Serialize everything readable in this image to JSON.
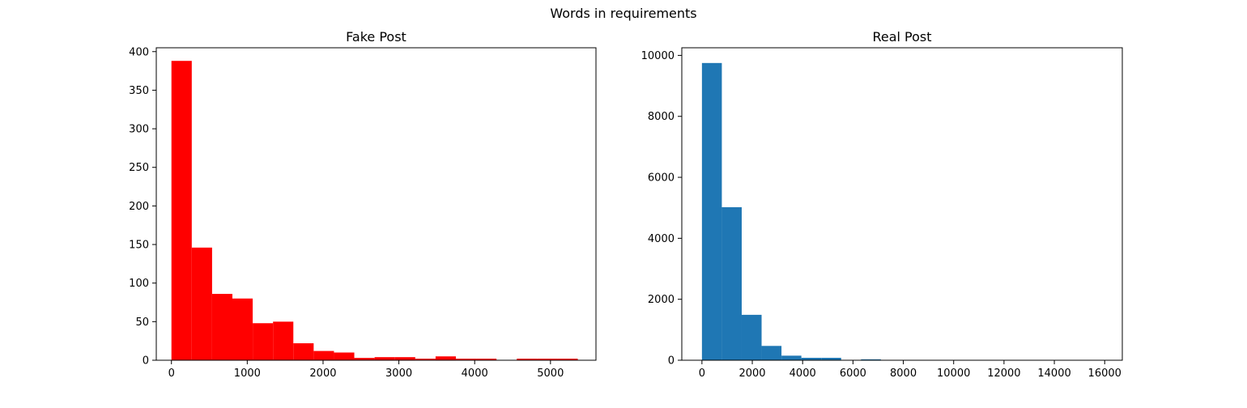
{
  "figure": {
    "title": "Words in requirements"
  },
  "chart_data": [
    {
      "type": "bar",
      "title": "Fake Post",
      "color": "#ff0000",
      "xlim": [
        -200,
        5600
      ],
      "ylim": [
        0,
        405
      ],
      "xticks": [
        0,
        1000,
        2000,
        3000,
        4000,
        5000
      ],
      "yticks": [
        0,
        50,
        100,
        150,
        200,
        250,
        300,
        350,
        400
      ],
      "bin_edges": [
        0,
        268,
        536,
        804,
        1072,
        1340,
        1608,
        1876,
        2144,
        2412,
        2680,
        2948,
        3216,
        3484,
        3752,
        4020,
        4288,
        4556,
        4824,
        5092,
        5360
      ],
      "values": [
        388,
        146,
        86,
        80,
        48,
        50,
        22,
        12,
        10,
        3,
        4,
        4,
        2,
        5,
        2,
        2,
        0,
        2,
        2,
        2
      ]
    },
    {
      "type": "bar",
      "title": "Real Post",
      "color": "#1f77b4",
      "xlim": [
        -800,
        16700
      ],
      "ylim": [
        0,
        10250
      ],
      "xticks": [
        0,
        2000,
        4000,
        6000,
        8000,
        10000,
        12000,
        14000,
        16000
      ],
      "yticks": [
        0,
        2000,
        4000,
        6000,
        8000,
        10000
      ],
      "bin_edges": [
        0,
        790,
        1580,
        2370,
        3160,
        3950,
        4740,
        5530,
        6320,
        7110,
        7900,
        8690,
        9480,
        10270,
        11060,
        11850,
        12640,
        13430,
        14220,
        15010,
        15800
      ],
      "values": [
        9750,
        5020,
        1490,
        470,
        150,
        80,
        80,
        10,
        30,
        5,
        3,
        2,
        2,
        1,
        1,
        1,
        1,
        1,
        1,
        1
      ]
    }
  ]
}
